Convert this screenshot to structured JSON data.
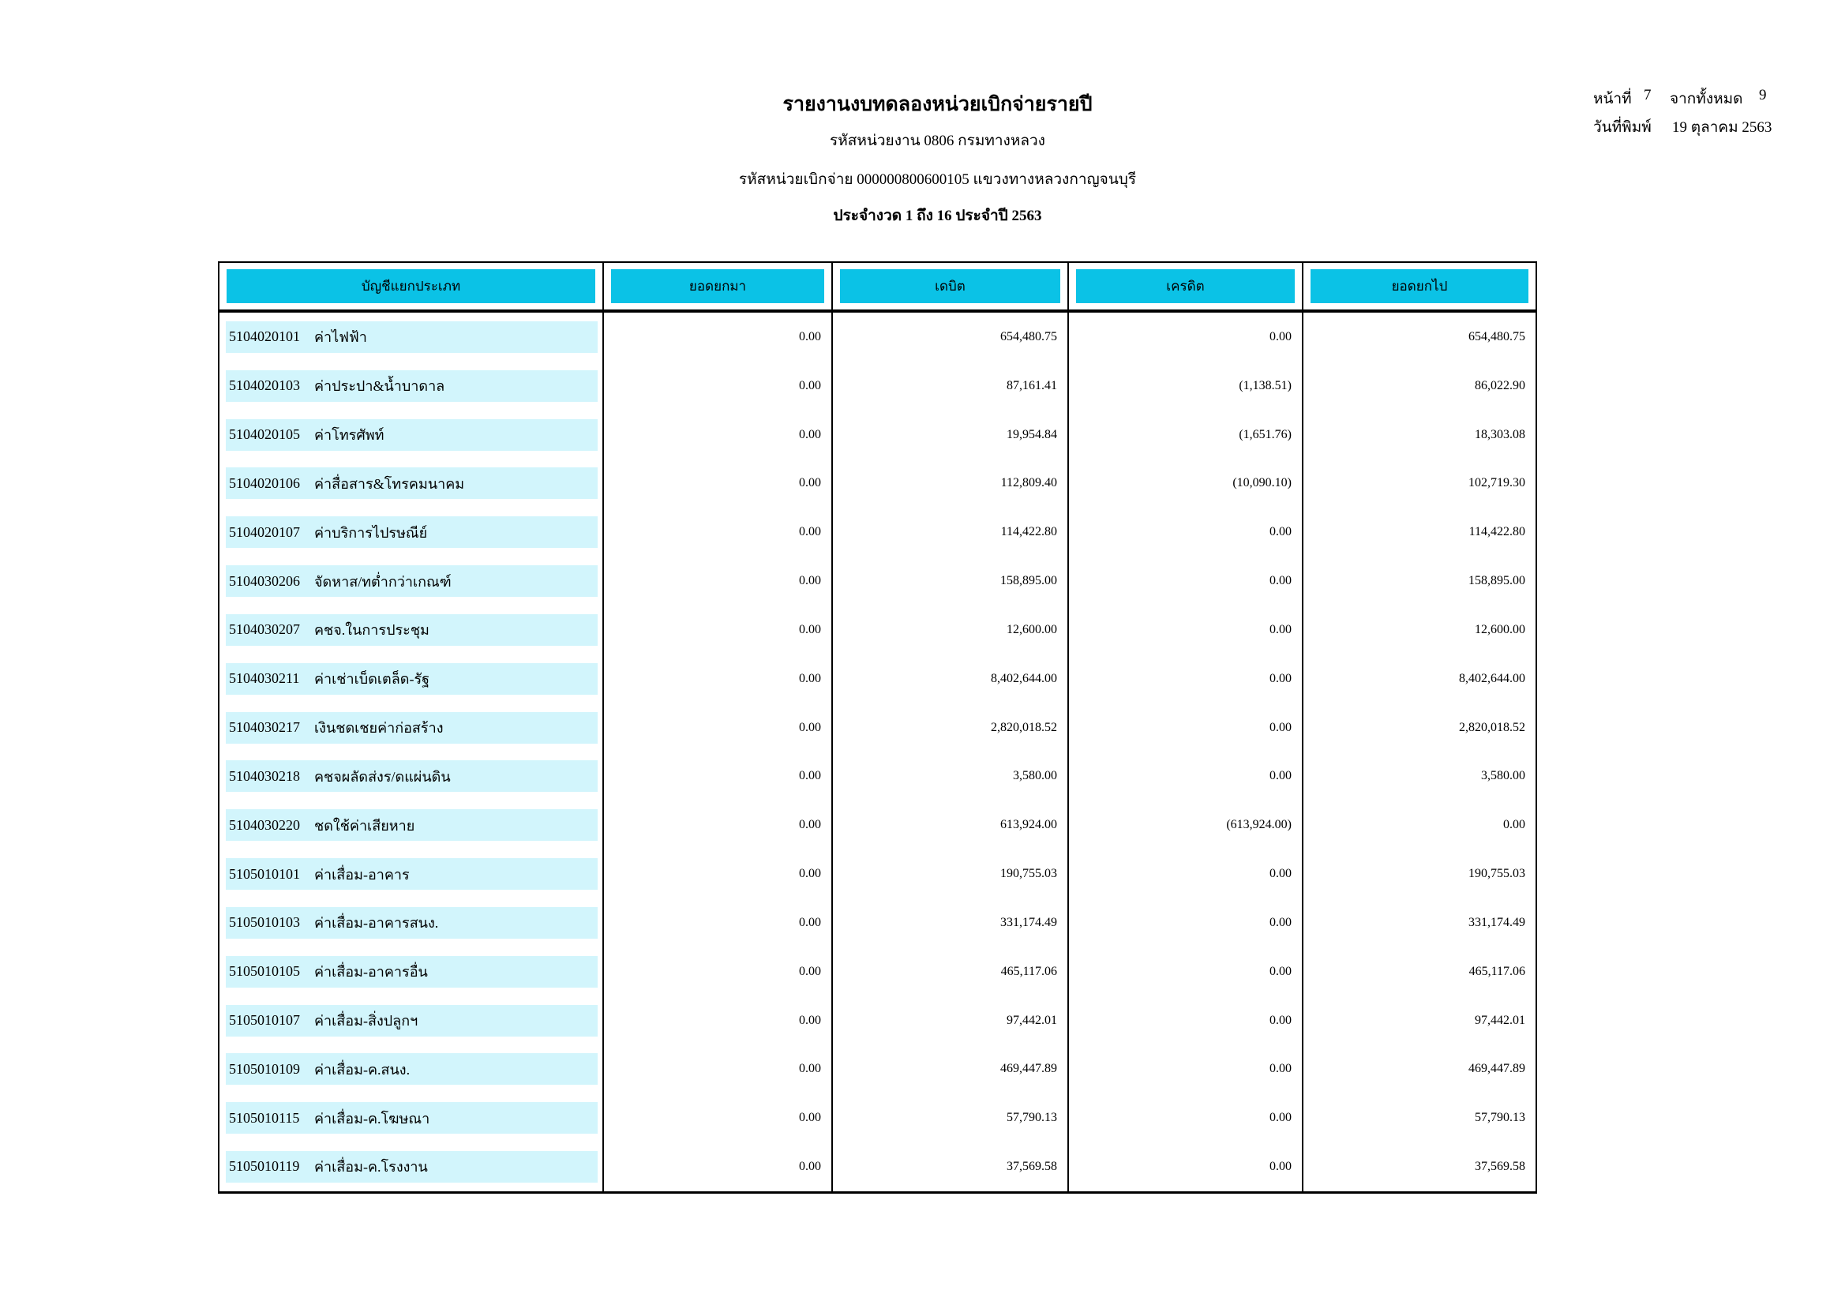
{
  "header": {
    "title": "รายงานงบทดลองหน่วยเบิกจ่ายรายปี",
    "agency_line": "รหัสหน่วยงาน 0806 กรมทางหลวง",
    "disbursement_line": "รหัสหน่วยเบิกจ่าย 000000800600105 แขวงทางหลวงกาญจนบุรี",
    "period_line": "ประจำงวด 1 ถึง 16 ประจำปี 2563"
  },
  "page_info": {
    "page_label": "หน้าที่",
    "page_number": "7",
    "total_label": "จากทั้งหมด",
    "total_pages": "9",
    "print_date_label": "วันที่พิมพ์",
    "print_date": "19 ตุลาคม 2563"
  },
  "table": {
    "colors": {
      "header_bg": "#0bc2e6",
      "row_bg": "#d2f5fc"
    },
    "headers": [
      "บัญชีแยกประเภท",
      "ยอดยกมา",
      "เดบิต",
      "เครดิต",
      "ยอดยกไป"
    ],
    "rows": [
      {
        "code": "5104020101",
        "name": "ค่าไฟฟ้า",
        "opening": "0.00",
        "debit": "654,480.75",
        "credit": "0.00",
        "closing": "654,480.75"
      },
      {
        "code": "5104020103",
        "name": "ค่าประปา&น้ำบาดาล",
        "opening": "0.00",
        "debit": "87,161.41",
        "credit": "(1,138.51)",
        "closing": "86,022.90"
      },
      {
        "code": "5104020105",
        "name": "ค่าโทรศัพท์",
        "opening": "0.00",
        "debit": "19,954.84",
        "credit": "(1,651.76)",
        "closing": "18,303.08"
      },
      {
        "code": "5104020106",
        "name": "ค่าสื่อสาร&โทรคมนาคม",
        "opening": "0.00",
        "debit": "112,809.40",
        "credit": "(10,090.10)",
        "closing": "102,719.30"
      },
      {
        "code": "5104020107",
        "name": "ค่าบริการไปรษณีย์",
        "opening": "0.00",
        "debit": "114,422.80",
        "credit": "0.00",
        "closing": "114,422.80"
      },
      {
        "code": "5104030206",
        "name": "จัดหาส/ทต่ำกว่าเกณฑ์",
        "opening": "0.00",
        "debit": "158,895.00",
        "credit": "0.00",
        "closing": "158,895.00"
      },
      {
        "code": "5104030207",
        "name": "คชจ.ในการประชุม",
        "opening": "0.00",
        "debit": "12,600.00",
        "credit": "0.00",
        "closing": "12,600.00"
      },
      {
        "code": "5104030211",
        "name": "ค่าเช่าเบ็ดเตล็ด-รัฐ",
        "opening": "0.00",
        "debit": "8,402,644.00",
        "credit": "0.00",
        "closing": "8,402,644.00"
      },
      {
        "code": "5104030217",
        "name": "เงินชดเชยค่าก่อสร้าง",
        "opening": "0.00",
        "debit": "2,820,018.52",
        "credit": "0.00",
        "closing": "2,820,018.52"
      },
      {
        "code": "5104030218",
        "name": "คชจผลัดส่งร/ดแผ่นดิน",
        "opening": "0.00",
        "debit": "3,580.00",
        "credit": "0.00",
        "closing": "3,580.00"
      },
      {
        "code": "5104030220",
        "name": "ชดใช้ค่าเสียหาย",
        "opening": "0.00",
        "debit": "613,924.00",
        "credit": "(613,924.00)",
        "closing": "0.00"
      },
      {
        "code": "5105010101",
        "name": "ค่าเสื่อม-อาคาร",
        "opening": "0.00",
        "debit": "190,755.03",
        "credit": "0.00",
        "closing": "190,755.03"
      },
      {
        "code": "5105010103",
        "name": "ค่าเสื่อม-อาคารสนง.",
        "opening": "0.00",
        "debit": "331,174.49",
        "credit": "0.00",
        "closing": "331,174.49"
      },
      {
        "code": "5105010105",
        "name": "ค่าเสื่อม-อาคารอื่น",
        "opening": "0.00",
        "debit": "465,117.06",
        "credit": "0.00",
        "closing": "465,117.06"
      },
      {
        "code": "5105010107",
        "name": "ค่าเสื่อม-สิ่งปลูกฯ",
        "opening": "0.00",
        "debit": "97,442.01",
        "credit": "0.00",
        "closing": "97,442.01"
      },
      {
        "code": "5105010109",
        "name": "ค่าเสื่อม-ค.สนง.",
        "opening": "0.00",
        "debit": "469,447.89",
        "credit": "0.00",
        "closing": "469,447.89"
      },
      {
        "code": "5105010115",
        "name": "ค่าเสื่อม-ค.โฆษณา",
        "opening": "0.00",
        "debit": "57,790.13",
        "credit": "0.00",
        "closing": "57,790.13"
      },
      {
        "code": "5105010119",
        "name": "ค่าเสื่อม-ค.โรงงาน",
        "opening": "0.00",
        "debit": "37,569.58",
        "credit": "0.00",
        "closing": "37,569.58"
      }
    ]
  }
}
